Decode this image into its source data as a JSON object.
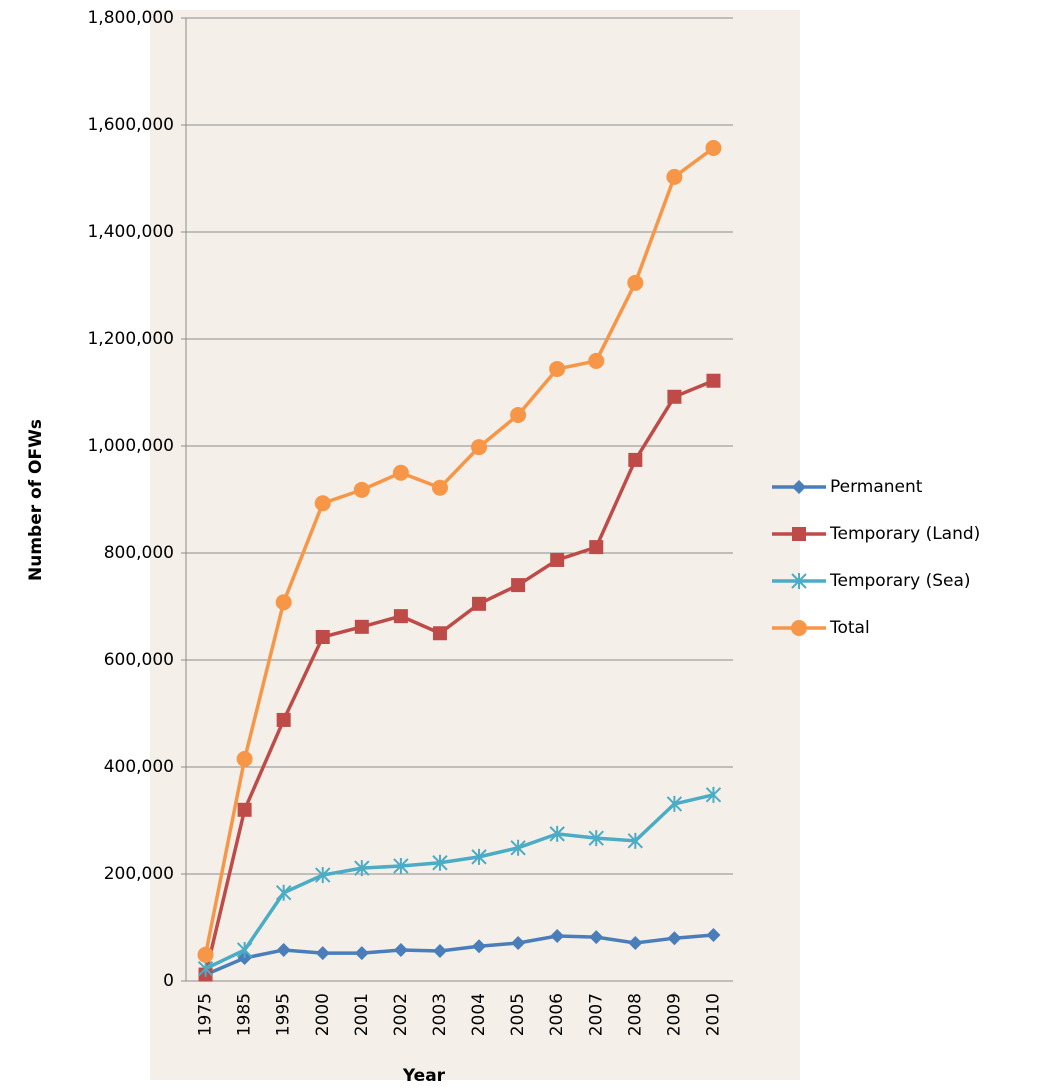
{
  "chart_data": {
    "type": "line",
    "x_label": "Year",
    "y_label": "Number of OFWs",
    "categories": [
      "1975",
      "1985",
      "1995",
      "2000",
      "2001",
      "2002",
      "2003",
      "2004",
      "2005",
      "2006",
      "2007",
      "2008",
      "2009",
      "2010"
    ],
    "series": [
      {
        "name": "Permanent",
        "color": "#4a7ebb",
        "marker": "diamond",
        "values": [
          12000,
          43000,
          58000,
          52000,
          52000,
          58000,
          56000,
          65000,
          71000,
          84000,
          82000,
          71000,
          80000,
          86000
        ]
      },
      {
        "name": "Temporary (Land)",
        "color": "#be4b48",
        "marker": "square",
        "values": [
          12000,
          320000,
          488000,
          643000,
          662000,
          682000,
          650000,
          705000,
          740000,
          787000,
          811000,
          974000,
          1092000,
          1122000
        ]
      },
      {
        "name": "Temporary (Sea)",
        "color": "#4bacc6",
        "marker": "asterisk",
        "values": [
          23000,
          58000,
          165000,
          198000,
          211000,
          215000,
          221000,
          232000,
          249000,
          275000,
          267000,
          262000,
          331000,
          348000
        ]
      },
      {
        "name": "Total",
        "color": "#f79646",
        "marker": "circle",
        "values": [
          49000,
          415000,
          708000,
          893000,
          918000,
          950000,
          922000,
          998000,
          1058000,
          1144000,
          1159000,
          1305000,
          1503000,
          1557000
        ]
      }
    ],
    "ylim": [
      0,
      1800000
    ],
    "yticks": [
      0,
      {
        "value": 200000,
        "label": "200,000"
      },
      {
        "value": 400000,
        "label": "400,000"
      },
      {
        "value": 600000,
        "label": "600,000"
      },
      {
        "value": 800000,
        "label": "800,000"
      },
      {
        "value": 1000000,
        "label": "1,000,000"
      },
      {
        "value": 1200000,
        "label": "1,200,000"
      },
      {
        "value": 1400000,
        "label": "1,400,000"
      },
      {
        "value": 1600000,
        "label": "1,600,000"
      },
      {
        "value": 1800000,
        "label": "1,800,000"
      }
    ],
    "grid": true,
    "legend": "right"
  }
}
